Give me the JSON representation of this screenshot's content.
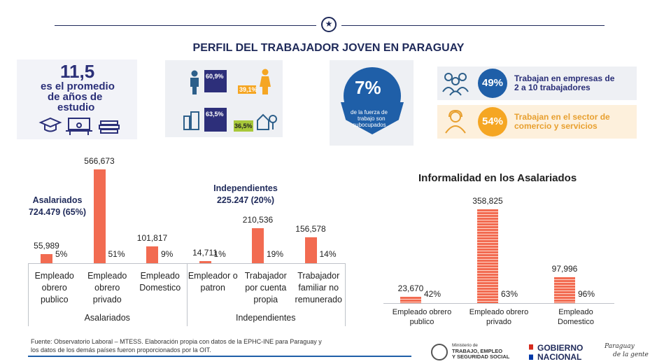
{
  "header": {
    "emblem": "star-seal-icon",
    "title": "PERFIL DEL TRABAJADOR JOVEN  EN PARAGUAY"
  },
  "infographics": {
    "education": {
      "value": "11,5",
      "line1": "es el promedio",
      "line2": "de años de",
      "line3": "estudio"
    },
    "gender": {
      "male_pct": "60,9%",
      "female_pct": "39,1%"
    },
    "area": {
      "urban_pct": "63,5%",
      "rural_pct": "36,5%"
    },
    "underemployed": {
      "value": "7%",
      "text1": "de la fuerza de",
      "text2": "trabajo son",
      "text3": "subocupados"
    },
    "companies": {
      "pct": "49%",
      "line1": "Trabajan en empresas de",
      "line2": "2 a 10 trabajadores"
    },
    "sector": {
      "pct": "54%",
      "line1": "Trabajan en el sector de",
      "line2": "comercio y servicios"
    }
  },
  "chart_data": [
    {
      "type": "bar",
      "groups": [
        {
          "label": "Asalariados",
          "annotation_line1": "Asalariados",
          "annotation_line2": "724.479 (65%)"
        },
        {
          "label": "Independientes",
          "annotation_line1": "Independientes",
          "annotation_line2": "225.247 (20%)"
        }
      ],
      "categories": [
        [
          "Empleado",
          "obrero",
          "publico"
        ],
        [
          "Empleado",
          "obrero",
          "privado"
        ],
        [
          "Empleado",
          "Domestico"
        ],
        [
          "Empleador o",
          "patron"
        ],
        [
          "Trabajador",
          "por cuenta",
          "propia"
        ],
        [
          "Trabajador",
          "familiar no",
          "remunerado"
        ]
      ],
      "values": [
        55989,
        566673,
        101817,
        14711,
        210536,
        156578
      ],
      "value_labels": [
        "55,989",
        "566,673",
        "101,817",
        "14,711",
        "210,536",
        "156,578"
      ],
      "pct_labels": [
        "5%",
        "51%",
        "9%",
        "1%",
        "19%",
        "14%"
      ],
      "ylim": [
        0,
        566673
      ]
    },
    {
      "type": "bar",
      "title": "Informalidad en los Asalariados",
      "categories": [
        [
          "Empleado obrero",
          "publico"
        ],
        [
          "Empleado obrero",
          "privado"
        ],
        [
          "Empleado",
          "Domestico"
        ]
      ],
      "values": [
        23670,
        358825,
        97996
      ],
      "value_labels": [
        "23,670",
        "358,825",
        "97,996"
      ],
      "pct_labels": [
        "42%",
        "63%",
        "96%"
      ],
      "ylim": [
        0,
        358825
      ]
    }
  ],
  "footer": {
    "source_line1": "Fuente: Observatorio Laboral – MTESS. Elaboración propia con datos de la EPHC-INE para Paraguay y",
    "source_line2": "los datos de los demás países fueron proporcionados por la OIT.",
    "ministry_small": "Ministerio de",
    "ministry_line1": "TRABAJO, EMPLEO",
    "ministry_line2": "Y SEGURIDAD SOCIAL",
    "gov_line1": "GOBIERNO",
    "gov_line2": "NACIONAL",
    "slogan_line1": "Paraguay",
    "slogan_line2": "de la gente"
  },
  "colors": {
    "bar": "#f26b51",
    "navy": "#1f2a5a",
    "blue_circle": "#1f5fa8",
    "orange_circle": "#f5a623"
  }
}
